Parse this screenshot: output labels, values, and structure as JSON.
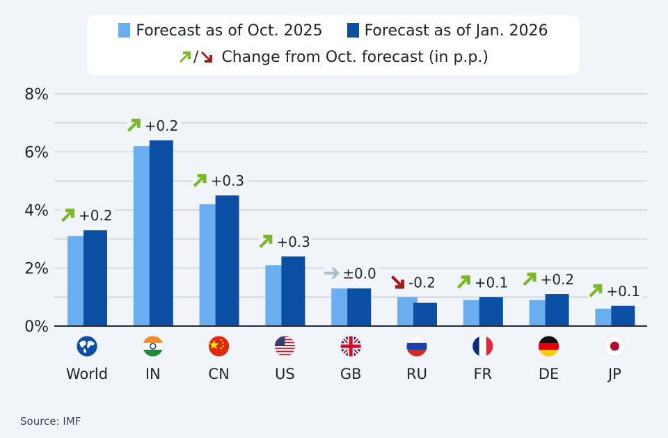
{
  "legend": {
    "series_1": "Forecast as of Oct. 2025",
    "series_2": "Forecast as of Jan. 2026",
    "change_note": "Change from Oct. forecast (in p.p.)",
    "separator": "/"
  },
  "source": "Source: IMF",
  "colors": {
    "oct": "#6aaef0",
    "jan": "#0b4fa5",
    "up": "#7ab829",
    "down": "#9e1b1b",
    "flat": "#aebfcc",
    "grid": "#c9d0d6",
    "axis": "#222a33"
  },
  "chart_data": {
    "type": "bar",
    "title": "",
    "xlabel": "",
    "ylabel": "",
    "ylim": [
      0,
      8
    ],
    "yticks": [
      0,
      2,
      4,
      6,
      8
    ],
    "ytick_labels": [
      "0%",
      "2%",
      "4%",
      "6%",
      "8%"
    ],
    "grid": true,
    "legend_position": "top-center",
    "categories": [
      "World",
      "IN",
      "CN",
      "US",
      "GB",
      "RU",
      "FR",
      "DE",
      "JP"
    ],
    "category_icons": [
      "globe-icon",
      "flag-india-icon",
      "flag-china-icon",
      "flag-usa-icon",
      "flag-uk-icon",
      "flag-russia-icon",
      "flag-france-icon",
      "flag-germany-icon",
      "flag-japan-icon"
    ],
    "series": [
      {
        "name": "Forecast as of Oct. 2025",
        "values": [
          3.1,
          6.2,
          4.2,
          2.1,
          1.3,
          1.0,
          0.9,
          0.9,
          0.6
        ]
      },
      {
        "name": "Forecast as of Jan. 2026",
        "values": [
          3.3,
          6.4,
          4.5,
          2.4,
          1.3,
          0.8,
          1.0,
          1.1,
          0.7
        ]
      }
    ],
    "annotations": [
      {
        "label": "+0.2",
        "direction": "up"
      },
      {
        "label": "+0.2",
        "direction": "up"
      },
      {
        "label": "+0.3",
        "direction": "up"
      },
      {
        "label": "+0.3",
        "direction": "up"
      },
      {
        "label": "±0.0",
        "direction": "flat"
      },
      {
        "label": "-0.2",
        "direction": "down"
      },
      {
        "label": "+0.1",
        "direction": "up"
      },
      {
        "label": "+0.2",
        "direction": "up"
      },
      {
        "label": "+0.1",
        "direction": "up"
      }
    ]
  }
}
